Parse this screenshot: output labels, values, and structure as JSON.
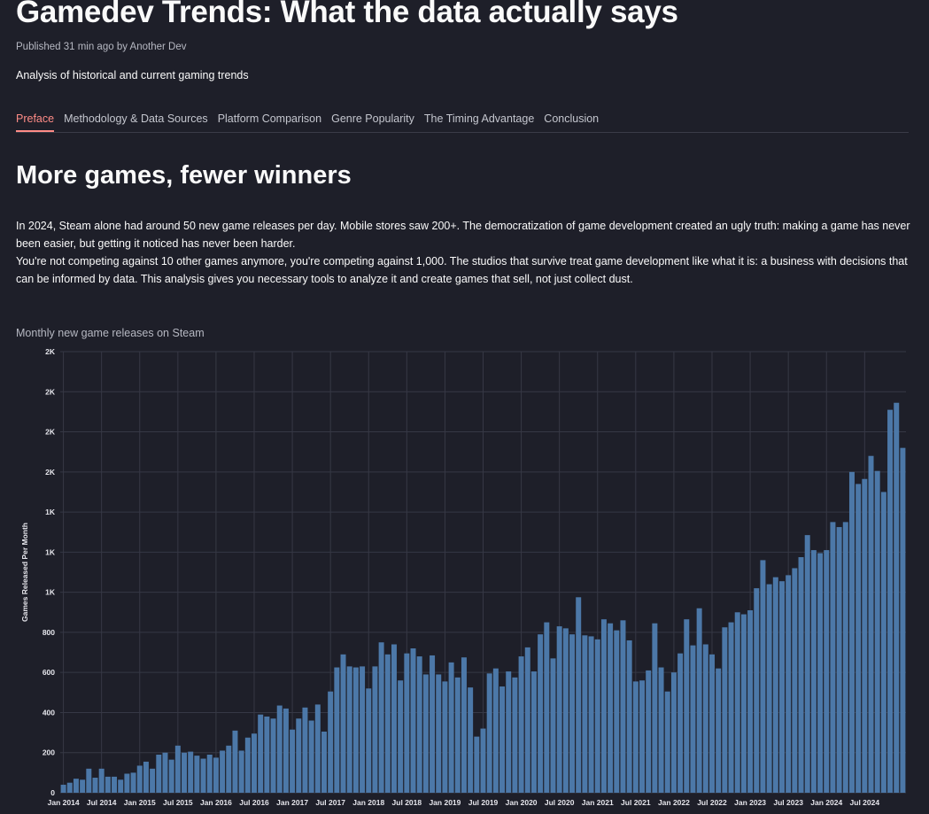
{
  "header": {
    "title": "Gamedev Trends: What the data actually says",
    "published_label": "Published",
    "published_time": "31 min ago",
    "by_label": "by",
    "author": "Another Dev",
    "subtitle": "Analysis of historical and current gaming trends"
  },
  "tabs": [
    {
      "label": "Preface",
      "active": true
    },
    {
      "label": "Methodology & Data Sources",
      "active": false
    },
    {
      "label": "Platform Comparison",
      "active": false
    },
    {
      "label": "Genre Popularity",
      "active": false
    },
    {
      "label": "The Timing Advantage",
      "active": false
    },
    {
      "label": "Conclusion",
      "active": false
    }
  ],
  "section": {
    "heading": "More games, fewer winners",
    "paragraph_1": "In 2024, Steam alone had around 50 new game releases per day. Mobile stores saw 200+. The democratization of game development created an ugly truth: making a game has never been easier, but getting it noticed has never been harder.",
    "paragraph_2": "You're not competing against 10 other games anymore, you're competing against 1,000. The studios that survive treat game development like what it is: a business with decisions that can be informed by data. This analysis gives you necessary tools to analyze it and create games that sell, not just collect dust."
  },
  "colors": {
    "background": "#1e1f29",
    "bar": "#4c78a8",
    "grid": "#363845",
    "accent": "#ff8c87"
  },
  "chart_data": {
    "type": "bar",
    "title": "Monthly new game releases on Steam",
    "ylabel": "Games Released Per Month",
    "xlabel": "",
    "ylim": [
      0,
      2200
    ],
    "y_ticks": [
      {
        "value": 0,
        "label": "0"
      },
      {
        "value": 200,
        "label": "200"
      },
      {
        "value": 400,
        "label": "400"
      },
      {
        "value": 600,
        "label": "600"
      },
      {
        "value": 800,
        "label": "800"
      },
      {
        "value": 1000,
        "label": "1K"
      },
      {
        "value": 1200,
        "label": "1K"
      },
      {
        "value": 1400,
        "label": "1K"
      },
      {
        "value": 1600,
        "label": "2K"
      },
      {
        "value": 1800,
        "label": "2K"
      },
      {
        "value": 2000,
        "label": "2K"
      },
      {
        "value": 2200,
        "label": "2K"
      }
    ],
    "x_ticks": [
      {
        "index": 0,
        "label": "Jan 2014"
      },
      {
        "index": 6,
        "label": "Jul 2014"
      },
      {
        "index": 12,
        "label": "Jan 2015"
      },
      {
        "index": 18,
        "label": "Jul 2015"
      },
      {
        "index": 24,
        "label": "Jan 2016"
      },
      {
        "index": 30,
        "label": "Jul 2016"
      },
      {
        "index": 36,
        "label": "Jan 2017"
      },
      {
        "index": 42,
        "label": "Jul 2017"
      },
      {
        "index": 48,
        "label": "Jan 2018"
      },
      {
        "index": 54,
        "label": "Jul 2018"
      },
      {
        "index": 60,
        "label": "Jan 2019"
      },
      {
        "index": 66,
        "label": "Jul 2019"
      },
      {
        "index": 72,
        "label": "Jan 2020"
      },
      {
        "index": 78,
        "label": "Jul 2020"
      },
      {
        "index": 84,
        "label": "Jan 2021"
      },
      {
        "index": 90,
        "label": "Jul 2021"
      },
      {
        "index": 96,
        "label": "Jan 2022"
      },
      {
        "index": 102,
        "label": "Jul 2022"
      },
      {
        "index": 108,
        "label": "Jan 2023"
      },
      {
        "index": 114,
        "label": "Jul 2023"
      },
      {
        "index": 120,
        "label": "Jan 2024"
      },
      {
        "index": 126,
        "label": "Jul 2024"
      }
    ],
    "start_month": "Jan 2014",
    "values": [
      40,
      50,
      70,
      65,
      120,
      75,
      120,
      80,
      80,
      65,
      95,
      100,
      135,
      155,
      120,
      190,
      200,
      165,
      235,
      200,
      205,
      185,
      170,
      190,
      175,
      210,
      235,
      310,
      210,
      275,
      295,
      390,
      380,
      370,
      435,
      420,
      315,
      370,
      425,
      360,
      440,
      305,
      505,
      625,
      690,
      630,
      625,
      630,
      520,
      630,
      750,
      690,
      740,
      560,
      695,
      720,
      680,
      590,
      685,
      590,
      555,
      650,
      575,
      675,
      525,
      280,
      320,
      595,
      620,
      530,
      605,
      575,
      680,
      725,
      605,
      790,
      850,
      670,
      830,
      820,
      790,
      975,
      785,
      780,
      765,
      865,
      845,
      810,
      860,
      760,
      555,
      560,
      610,
      845,
      625,
      505,
      600,
      695,
      865,
      735,
      920,
      740,
      690,
      620,
      825,
      850,
      900,
      890,
      910,
      1020,
      1160,
      1040,
      1075,
      1055,
      1085,
      1120,
      1175,
      1285,
      1210,
      1195,
      1210,
      1350,
      1325,
      1350,
      1600,
      1540,
      1565,
      1680,
      1605,
      1500,
      1910,
      1945,
      1720
    ]
  }
}
